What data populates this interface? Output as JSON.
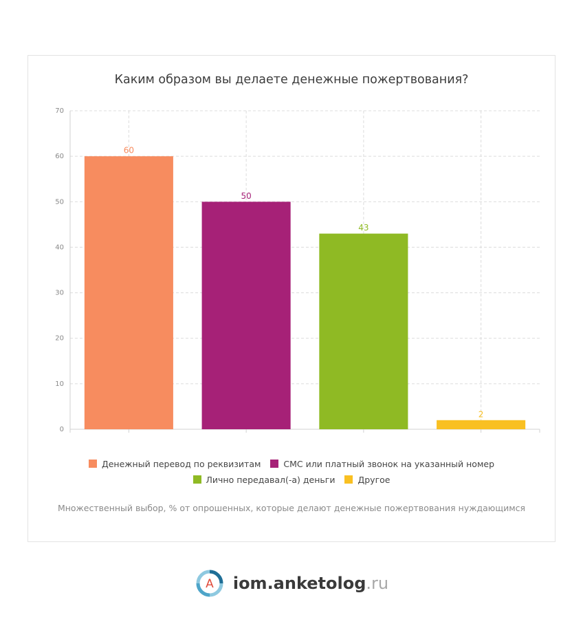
{
  "chart_data": {
    "type": "bar",
    "title": "Каким образом вы делаете денежные пожертвования?",
    "categories": [
      "Денежный перевод по реквизитам",
      "СМС или платный звонок на указанный номер",
      "Лично передавал(-а) деньги",
      "Другое"
    ],
    "values": [
      60,
      50,
      43,
      2
    ],
    "colors": [
      "#f78c5f",
      "#a62177",
      "#8fba24",
      "#f9c022"
    ],
    "ylim": [
      0,
      70
    ],
    "yticks": [
      0,
      10,
      20,
      30,
      40,
      50,
      60,
      70
    ],
    "grid": true,
    "note": "Множественный выбор, % от опрошенных, которые делают денежные пожертвования нуждающимся"
  },
  "logo": {
    "letter": "A",
    "name": "iom.anketolog",
    "tld": ".ru"
  }
}
